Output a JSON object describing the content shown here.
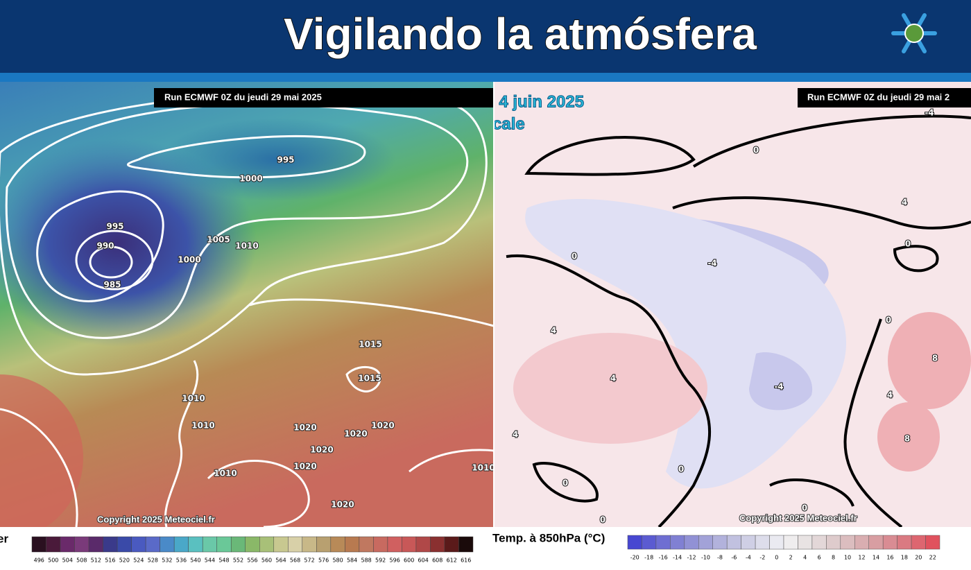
{
  "header": {
    "title": "Vigilando la atmósfera"
  },
  "left_map": {
    "run_label": "Run ECMWF 0Z du jeudi 29 mai 2025",
    "contour_labels": [
      995,
      1000,
      995,
      990,
      985,
      1005,
      1010,
      1000,
      1015,
      1015,
      1010,
      1010,
      1020,
      1020,
      1020,
      1020,
      1020,
      1010,
      1020,
      1010
    ],
    "copyright": "Copyright 2025 Meteociel.fr",
    "legend_label": "er",
    "colorbar_ticks": [
      496,
      500,
      504,
      508,
      512,
      516,
      520,
      524,
      528,
      532,
      536,
      540,
      544,
      548,
      552,
      556,
      560,
      564,
      568,
      572,
      576,
      580,
      584,
      588,
      592,
      596,
      600,
      604,
      608,
      612,
      616
    ]
  },
  "right_map": {
    "date_fragment": "i 4 juin 2025",
    "level_fragment": "cale",
    "run_label": "Run ECMWF 0Z du jeudi 29 mai 2",
    "contour_labels": [
      0,
      0,
      -4,
      4,
      0,
      4,
      4,
      -4,
      4,
      0,
      0,
      0,
      0,
      8,
      8,
      4,
      0,
      -4
    ],
    "copyright": "Copyright 2025 Meteociel.fr",
    "legend_label": "Temp. à 850hPa (°C)",
    "colorbar_ticks": [
      -20,
      -18,
      -16,
      -14,
      -12,
      -10,
      -8,
      -6,
      -4,
      -2,
      0,
      2,
      4,
      6,
      8,
      10,
      12,
      14,
      16,
      18,
      20,
      22
    ]
  }
}
